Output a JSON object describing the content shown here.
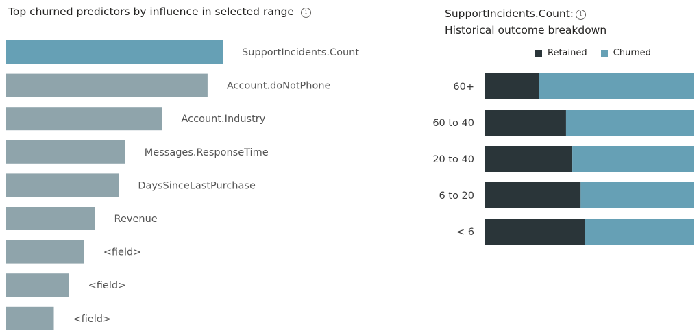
{
  "colors": {
    "highlight_bar": "#66a0b5",
    "bar": "#8fa4ab",
    "retained": "#2a3539",
    "churned": "#66a0b5",
    "label": "#555555"
  },
  "chart_data": [
    {
      "type": "bar",
      "orientation": "horizontal",
      "title": "Top churned predictors by influence in selected range",
      "categories": [
        "SupportIncidents.Count",
        "Account.doNotPhone",
        "Account.Industry",
        "Messages.ResponseTime",
        "DaysSinceLastPurchase",
        "Revenue",
        "<field>",
        "<field>",
        "<field>"
      ],
      "values": [
        100,
        93,
        72,
        55,
        52,
        41,
        36,
        29,
        22
      ],
      "highlighted_index": 0,
      "xlim": [
        0,
        100
      ],
      "grid": false,
      "axes_visible": false
    },
    {
      "type": "bar",
      "orientation": "horizontal",
      "stacked": true,
      "percent": true,
      "title": "SupportIncidents.Count:",
      "subtitle": "Historical outcome breakdown",
      "categories": [
        "60+",
        "60 to 40",
        "20 to 40",
        "6 to 20",
        "< 6"
      ],
      "series": [
        {
          "name": "Retained",
          "values": [
            26,
            39,
            42,
            46,
            48
          ]
        },
        {
          "name": "Churned",
          "values": [
            74,
            61,
            58,
            54,
            52
          ]
        }
      ],
      "xlim": [
        0,
        100
      ],
      "legend": "top",
      "grid": false
    }
  ]
}
